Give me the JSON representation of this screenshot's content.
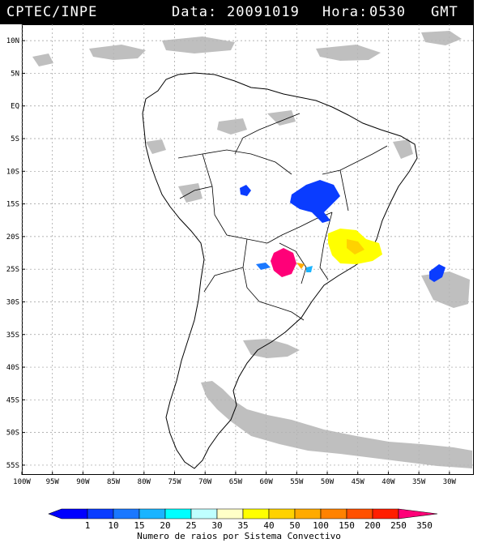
{
  "header": {
    "source": "CPTEC/INPE",
    "date_label": "Data:",
    "date": "20091019",
    "hour_label": "Hora:",
    "hour": "0530",
    "timezone": "GMT"
  },
  "axes": {
    "lat_labels": [
      "10N",
      "5N",
      "EQ",
      "5S",
      "10S",
      "15S",
      "20S",
      "25S",
      "30S",
      "35S",
      "40S",
      "45S",
      "50S",
      "55S"
    ],
    "lon_labels": [
      "100W",
      "95W",
      "90W",
      "85W",
      "80W",
      "75W",
      "70W",
      "65W",
      "60W",
      "55W",
      "50W",
      "45W",
      "40W",
      "35W",
      "30W"
    ]
  },
  "colorbar": {
    "title": "Numero de raios por Sistema Convectivo",
    "ticks": [
      "1",
      "10",
      "15",
      "20",
      "25",
      "30",
      "35",
      "40",
      "50",
      "100",
      "150",
      "200",
      "250",
      "350"
    ],
    "colors": [
      "#0000ff",
      "#0a3cff",
      "#1a78ff",
      "#1ab4ff",
      "#00ffff",
      "#bfffff",
      "#ffffc8",
      "#ffff00",
      "#ffd200",
      "#ffaa00",
      "#ff8200",
      "#ff5000",
      "#ff1e00",
      "#ff0078"
    ]
  },
  "colors": {
    "cloud": "#b4b4b4",
    "land_outline": "#000000",
    "grid": "#9a9a9a"
  }
}
